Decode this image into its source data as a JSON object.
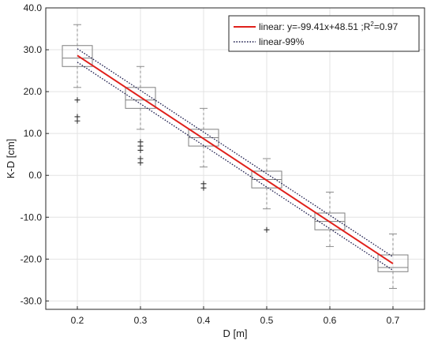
{
  "chart_data": {
    "type": "box",
    "xlabel": "D [m]",
    "ylabel": "K-D [cm]",
    "xlim": [
      0.15,
      0.75
    ],
    "ylim": [
      -32,
      40
    ],
    "x_ticks": [
      0.2,
      0.3,
      0.4,
      0.5,
      0.6,
      0.7
    ],
    "x_tick_labels": [
      "0.2",
      "0.3",
      "0.4",
      "0.5",
      "0.6",
      "0.7"
    ],
    "y_ticks": [
      40,
      30,
      20,
      10,
      0,
      -10,
      -20,
      -30
    ],
    "y_tick_labels": [
      "40.0",
      "30.0",
      "20.0",
      "10.0",
      "0.0",
      "-10.0",
      "-20.0",
      "-30.0"
    ],
    "grid": true,
    "legend_position": "top-right",
    "boxes": [
      {
        "x": 0.2,
        "whisker_low": 21,
        "q1": 26,
        "median": 28,
        "q3": 31,
        "whisker_high": 36,
        "outliers": [
          18,
          14,
          13
        ]
      },
      {
        "x": 0.3,
        "whisker_low": 11,
        "q1": 16,
        "median": 18,
        "q3": 21,
        "whisker_high": 26,
        "outliers": [
          8,
          7,
          6,
          4,
          3
        ]
      },
      {
        "x": 0.4,
        "whisker_low": 2,
        "q1": 7,
        "median": 9,
        "q3": 11,
        "whisker_high": 16,
        "outliers": [
          -2,
          -3
        ]
      },
      {
        "x": 0.5,
        "whisker_low": -8,
        "q1": -3,
        "median": -1,
        "q3": 1,
        "whisker_high": 4,
        "outliers": [
          -13
        ]
      },
      {
        "x": 0.6,
        "whisker_low": -17,
        "q1": -13,
        "median": -11,
        "q3": -9,
        "whisker_high": -4,
        "outliers": []
      },
      {
        "x": 0.7,
        "whisker_low": -27,
        "q1": -23,
        "median": -22,
        "q3": -19,
        "whisker_high": -14,
        "outliers": []
      }
    ],
    "fit": {
      "label": "linear: y=-99.41x+48.51 ;R",
      "label_sup": "2",
      "label_end": "=0.97",
      "slope": -99.41,
      "intercept": 48.51,
      "x_range": [
        0.2,
        0.7
      ],
      "color": "#e0201b"
    },
    "band": {
      "label": "linear-99%",
      "offset": 1.6,
      "color": "#1f1f4f"
    }
  }
}
